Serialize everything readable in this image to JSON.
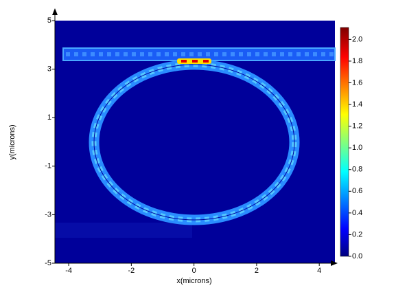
{
  "chart_data": {
    "type": "heatmap",
    "xlabel": "x(microns)",
    "ylabel": "y(microns)",
    "xlim": [
      -4.44,
      4.5
    ],
    "xticks": [
      -4,
      -2,
      0,
      2,
      4
    ],
    "ylim": [
      -5,
      5
    ],
    "yticks": [
      5,
      3,
      1,
      -1,
      -3,
      -5
    ],
    "colorbar": {
      "clim": [
        0,
        2.11
      ],
      "ticks": [
        {
          "value": 0,
          "label": "0.0"
        },
        0.2,
        0.4,
        0.6,
        0.8,
        {
          "value": 1,
          "label": "1.0"
        },
        1.2,
        1.4,
        1.6,
        1.8,
        {
          "value": 2,
          "label": "2.0"
        }
      ]
    }
  }
}
